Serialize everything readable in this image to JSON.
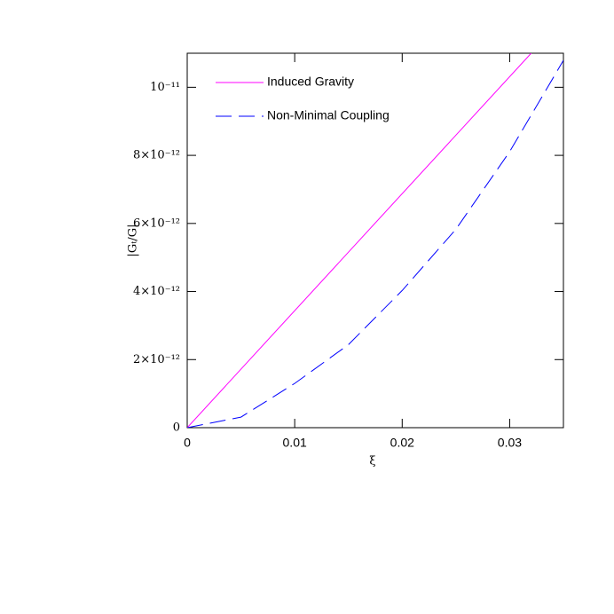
{
  "chart_data": {
    "type": "line",
    "xlabel": "ξ",
    "ylabel": "|Gₜ/G|",
    "xlim": [
      0,
      0.035
    ],
    "ylim": [
      0,
      1.1e-11
    ],
    "xticks": [
      0,
      0.01,
      0.02,
      0.03
    ],
    "yticks": [
      0,
      {
        "value": 2e-12,
        "label": "2×10⁻¹²"
      },
      {
        "value": 4e-12,
        "label": "4×10⁻¹²"
      },
      {
        "value": 6e-12,
        "label": "6×10⁻¹²"
      },
      {
        "value": 8e-12,
        "label": "8×10⁻¹²"
      },
      {
        "value": 1e-11,
        "label": "10⁻¹¹"
      }
    ],
    "series": [
      {
        "name": "Induced Gravity",
        "color": "#ff00ff",
        "dash": false,
        "x": [
          0,
          0.032
        ],
        "values": [
          0,
          1.1e-11
        ]
      },
      {
        "name": "Non-Minimal Coupling",
        "color": "#0000ff",
        "dash": true,
        "x": [
          0,
          0.005,
          0.01,
          0.015,
          0.02,
          0.025,
          0.03,
          0.035
        ],
        "values": [
          0,
          3.1e-13,
          1.3e-12,
          2.44e-12,
          4.03e-12,
          5.83e-12,
          8.11e-12,
          1.079e-11
        ]
      }
    ]
  }
}
